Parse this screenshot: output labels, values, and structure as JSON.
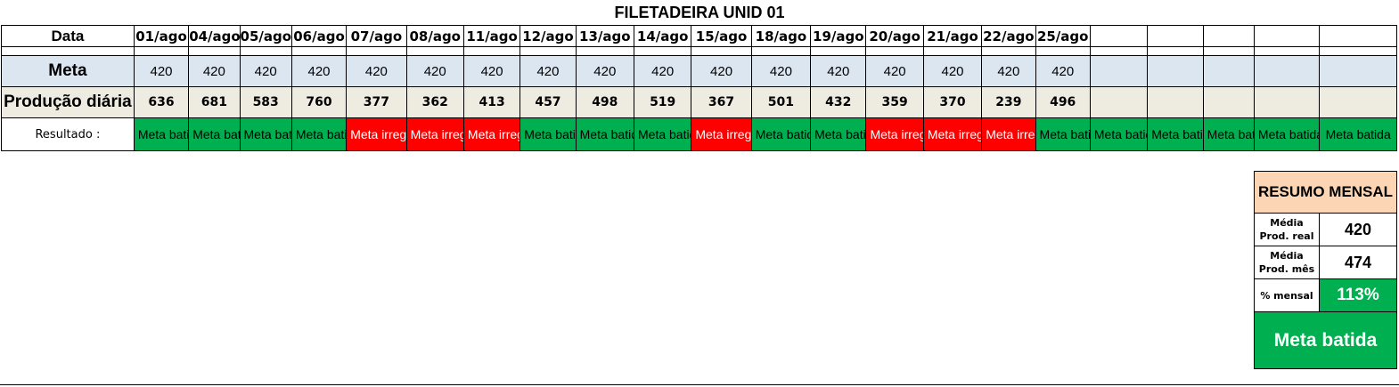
{
  "title": "FILETADEIRA UNID 01",
  "row_labels": {
    "data": "Data",
    "meta": "Meta",
    "producao": "Produção diária",
    "resultado": "Resultado :"
  },
  "columns": [
    {
      "date": "01/ago",
      "meta": "420",
      "producao": "636",
      "resultado": "Meta batida",
      "status": "ok"
    },
    {
      "date": "04/ago",
      "meta": "420",
      "producao": "681",
      "resultado": "Meta batida",
      "status": "ok"
    },
    {
      "date": "05/ago",
      "meta": "420",
      "producao": "583",
      "resultado": "Meta batida",
      "status": "ok"
    },
    {
      "date": "06/ago",
      "meta": "420",
      "producao": "760",
      "resultado": "Meta batida",
      "status": "ok"
    },
    {
      "date": "07/ago",
      "meta": "420",
      "producao": "377",
      "resultado": "Meta irregular",
      "status": "bad"
    },
    {
      "date": "08/ago",
      "meta": "420",
      "producao": "362",
      "resultado": "Meta irregular",
      "status": "bad"
    },
    {
      "date": "11/ago",
      "meta": "420",
      "producao": "413",
      "resultado": "Meta irregular",
      "status": "bad"
    },
    {
      "date": "12/ago",
      "meta": "420",
      "producao": "457",
      "resultado": "Meta batida",
      "status": "ok"
    },
    {
      "date": "13/ago",
      "meta": "420",
      "producao": "498",
      "resultado": "Meta batida",
      "status": "ok"
    },
    {
      "date": "14/ago",
      "meta": "420",
      "producao": "519",
      "resultado": "Meta batida",
      "status": "ok"
    },
    {
      "date": "15/ago",
      "meta": "420",
      "producao": "367",
      "resultado": "Meta irregular",
      "status": "bad"
    },
    {
      "date": "18/ago",
      "meta": "420",
      "producao": "501",
      "resultado": "Meta batida",
      "status": "ok"
    },
    {
      "date": "19/ago",
      "meta": "420",
      "producao": "432",
      "resultado": "Meta batida",
      "status": "ok"
    },
    {
      "date": "20/ago",
      "meta": "420",
      "producao": "359",
      "resultado": "Meta irregular",
      "status": "bad"
    },
    {
      "date": "21/ago",
      "meta": "420",
      "producao": "370",
      "resultado": "Meta irregular",
      "status": "bad"
    },
    {
      "date": "22/ago",
      "meta": "420",
      "producao": "239",
      "resultado": "Meta irregular",
      "status": "bad"
    },
    {
      "date": "25/ago",
      "meta": "420",
      "producao": "496",
      "resultado": "Meta batida",
      "status": "ok"
    },
    {
      "date": "",
      "meta": "",
      "producao": "",
      "resultado": "Meta batida",
      "status": "ok"
    },
    {
      "date": "",
      "meta": "",
      "producao": "",
      "resultado": "Meta batida",
      "status": "ok"
    },
    {
      "date": "",
      "meta": "",
      "producao": "",
      "resultado": "Meta batida",
      "status": "ok"
    },
    {
      "date": "",
      "meta": "",
      "producao": "",
      "resultado": "Meta batida",
      "status": "ok"
    },
    {
      "date": "",
      "meta": "",
      "producao": "",
      "resultado": "Meta batida",
      "status": "ok",
      "single_line": true
    }
  ],
  "summary": {
    "header": "RESUMO MENSAL",
    "media_real_label": "Média Prod. real",
    "media_real_value": "420",
    "media_mes_label": "Média Prod. mês",
    "media_mes_value": "474",
    "pct_label": "% mensal",
    "pct_value": "113%",
    "final_result": "Meta batida"
  },
  "colors": {
    "ok": "#00b050",
    "bad": "#ff0000",
    "meta_row_bg": "#dce6f1",
    "prod_row_bg": "#eeece1",
    "summary_header_bg": "#fcd5b4"
  }
}
